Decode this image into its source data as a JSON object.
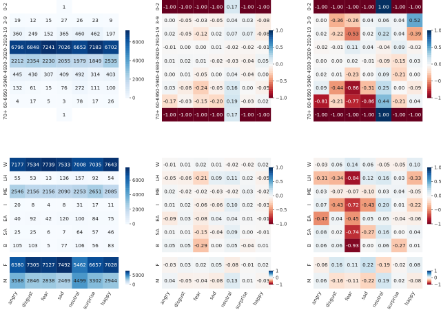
{
  "colors": {
    "counts_low": "#f7fbff",
    "counts_high": "#08306b",
    "div_neg": "#67001f",
    "div_mid": "#f7f7f7",
    "div_pos": "#053061"
  },
  "columns": [
    "angry",
    "disgust",
    "fear",
    "sad",
    "neutral",
    "surprise",
    "happy"
  ],
  "chart_data": [
    {
      "type": "heatmap",
      "id": "age-counts",
      "rows": [
        "0-2",
        "3-9",
        "10-19",
        "20-29",
        "30-39",
        "40-49",
        "50-59",
        "60-69",
        "70+"
      ],
      "values": [
        [
          null,
          null,
          null,
          1,
          null,
          null,
          null
        ],
        [
          19,
          12,
          15,
          27,
          26,
          23,
          9
        ],
        [
          360,
          249,
          152,
          365,
          460,
          462,
          197
        ],
        [
          6796,
          6848,
          7241,
          7026,
          6653,
          7183,
          6702
        ],
        [
          2212,
          2354,
          2230,
          2055,
          1979,
          1849,
          2535
        ],
        [
          445,
          430,
          307,
          409,
          492,
          314,
          403
        ],
        [
          132,
          61,
          15,
          76,
          272,
          111,
          100
        ],
        [
          4,
          17,
          5,
          3,
          78,
          17,
          26
        ],
        [
          null,
          null,
          null,
          1,
          null,
          null,
          null
        ]
      ],
      "vmin": 0,
      "vmax": 7241,
      "colorbar_ticks": [
        0,
        2000,
        4000,
        6000
      ],
      "colorbar_labels": [
        "0",
        "2000",
        "4000",
        "6000"
      ],
      "scale": "counts"
    },
    {
      "type": "heatmap",
      "id": "age-diff-a",
      "rows": [
        "0-2",
        "3-9",
        "10-19",
        "20-29",
        "30-39",
        "40-49",
        "50-59",
        "60-69",
        "70+"
      ],
      "values": [
        [
          -1.0,
          -1.0,
          -1.0,
          -1.0,
          0.17,
          -1.0,
          -1.0
        ],
        [
          0.0,
          -0.05,
          -0.03,
          -0.05,
          0.04,
          0.03,
          -0.08
        ],
        [
          0.02,
          -0.05,
          -0.12,
          0.02,
          0.07,
          0.07,
          -0.08
        ],
        [
          -0.01,
          0.0,
          0.0,
          0.01,
          -0.02,
          -0.02,
          -0.01
        ],
        [
          0.01,
          0.02,
          0.01,
          -0.02,
          -0.03,
          -0.04,
          0.05
        ],
        [
          0.0,
          0.01,
          -0.05,
          0.0,
          0.04,
          -0.04,
          0.0
        ],
        [
          0.03,
          -0.08,
          -0.24,
          -0.05,
          0.16,
          0.0,
          -0.05
        ],
        [
          -0.17,
          -0.03,
          -0.15,
          -0.2,
          0.19,
          -0.03,
          0.02
        ],
        [
          -1.0,
          -1.0,
          -1.0,
          -1.0,
          0.17,
          -1.0,
          -1.0
        ]
      ],
      "vmin": -1,
      "vmax": 1,
      "colorbar_ticks": [
        1,
        0.5,
        0,
        -0.5,
        -1
      ],
      "colorbar_labels": [
        "1.0",
        "0.5",
        "0.0",
        "−0.5",
        "−1.0"
      ],
      "scale": "diverging"
    },
    {
      "type": "heatmap",
      "id": "age-diff-b",
      "rows": [
        "0-2",
        "3-9",
        "10-19",
        "20-29",
        "30-39",
        "40-49",
        "50-59",
        "60-69",
        "70+"
      ],
      "values": [
        [
          -1.0,
          -1.0,
          -1.0,
          -1.0,
          1.0,
          -1.0,
          -1.0
        ],
        [
          0.0,
          -0.36,
          -0.26,
          0.04,
          0.06,
          0.04,
          0.52
        ],
        [
          0.02,
          -0.22,
          -0.53,
          0.02,
          0.22,
          0.04,
          -0.39
        ],
        [
          -0.02,
          -0.01,
          0.11,
          0.04,
          -0.04,
          0.09,
          -0.03
        ],
        [
          0.0,
          0.0,
          0.02,
          -0.01,
          -0.09,
          -0.15,
          0.03
        ],
        [
          0.02,
          0.01,
          -0.23,
          0.0,
          0.09,
          -0.21,
          0.0
        ],
        [
          0.09,
          -0.44,
          -0.86,
          -0.31,
          0.25,
          0.0,
          -0.09
        ],
        [
          -0.81,
          -0.21,
          -0.77,
          -0.86,
          0.44,
          -0.21,
          0.04
        ],
        [
          -1.0,
          -1.0,
          -1.0,
          -1.0,
          1.0,
          -1.0,
          -1.0
        ]
      ],
      "vmin": -1,
      "vmax": 1,
      "colorbar_ticks": [
        1,
        0.5,
        0,
        -0.5,
        -1
      ],
      "colorbar_labels": [
        "1.0",
        "0.5",
        "0.0",
        "−0.5",
        "−1.0"
      ],
      "scale": "diverging"
    },
    {
      "type": "heatmap",
      "id": "race-counts",
      "rows": [
        "W",
        "LH",
        "ME",
        "I",
        "EA",
        "SA",
        "B"
      ],
      "values": [
        [
          7177,
          7534,
          7739,
          7533,
          7008,
          7035,
          7643
        ],
        [
          55,
          53,
          13,
          136,
          157,
          92,
          54
        ],
        [
          2546,
          2156,
          2156,
          2090,
          2253,
          2651,
          2085
        ],
        [
          20,
          8,
          4,
          8,
          31,
          17,
          11
        ],
        [
          40,
          92,
          42,
          120,
          100,
          84,
          75
        ],
        [
          25,
          25,
          6,
          7,
          64,
          57,
          46
        ],
        [
          105,
          103,
          5,
          77,
          106,
          56,
          83
        ]
      ],
      "vmin": 0,
      "vmax": 7739,
      "colorbar_ticks": [
        0,
        2000,
        4000,
        6000
      ],
      "colorbar_labels": [
        "0",
        "2000",
        "4000",
        "6000"
      ],
      "scale": "counts"
    },
    {
      "type": "heatmap",
      "id": "race-diff-a",
      "rows": [
        "W",
        "LH",
        "ME",
        "I",
        "EA",
        "SA",
        "B"
      ],
      "values": [
        [
          -0.01,
          0.01,
          0.02,
          0.01,
          -0.02,
          -0.02,
          0.02
        ],
        [
          -0.05,
          -0.06,
          -0.21,
          0.09,
          0.11,
          0.02,
          -0.05
        ],
        [
          0.02,
          -0.02,
          -0.02,
          -0.03,
          -0.02,
          0.03,
          -0.02
        ],
        [
          0.01,
          0.02,
          -0.06,
          -0.06,
          0.1,
          0.02,
          -0.03
        ],
        [
          -0.09,
          0.03,
          -0.08,
          0.04,
          0.04,
          0.01,
          -0.01
        ],
        [
          0.01,
          0.01,
          -0.15,
          -0.04,
          0.09,
          0.0,
          -0.01
        ],
        [
          0.05,
          0.05,
          -0.29,
          0.0,
          0.05,
          -0.04,
          0.01
        ]
      ],
      "vmin": -1,
      "vmax": 1,
      "colorbar_ticks": [
        1,
        0.5,
        0,
        -0.5,
        -1
      ],
      "colorbar_labels": [
        "1.0",
        "0.5",
        "0.0",
        "−0.5",
        "−1.0"
      ],
      "scale": "diverging"
    },
    {
      "type": "heatmap",
      "id": "race-diff-b",
      "rows": [
        "W",
        "LH",
        "ME",
        "I",
        "EA",
        "SA",
        "B"
      ],
      "values": [
        [
          -0.03,
          0.06,
          0.14,
          0.06,
          -0.05,
          -0.05,
          0.1
        ],
        [
          -0.31,
          -0.34,
          -0.84,
          0.12,
          0.16,
          0.03,
          -0.33
        ],
        [
          0.03,
          -0.07,
          -0.07,
          -0.1,
          0.03,
          0.04,
          -0.05
        ],
        [
          0.07,
          -0.43,
          -0.72,
          -0.43,
          0.2,
          0.01,
          -0.22
        ],
        [
          -0.47,
          0.04,
          -0.45,
          0.05,
          0.05,
          -0.04,
          -0.06
        ],
        [
          0.08,
          0.02,
          -0.74,
          -0.27,
          0.16,
          0.0,
          0.04
        ],
        [
          0.06,
          0.06,
          -0.93,
          0.0,
          0.06,
          -0.27,
          0.01
        ]
      ],
      "vmin": -1,
      "vmax": 1,
      "colorbar_ticks": [
        1,
        0.5,
        0,
        -0.5,
        -1
      ],
      "colorbar_labels": [
        "1.0",
        "0.5",
        "0.0",
        "−0.5",
        "−1.0"
      ],
      "scale": "diverging"
    },
    {
      "type": "heatmap",
      "id": "gender-counts",
      "rows": [
        "F",
        "M"
      ],
      "values": [
        [
          6380,
          7305,
          7127,
          7492,
          5462,
          6657,
          7028
        ],
        [
          3588,
          2846,
          2838,
          2469,
          4499,
          3302,
          2944
        ]
      ],
      "vmin": 0,
      "vmax": 7492,
      "colorbar_ticks": [
        0,
        5000
      ],
      "colorbar_labels": [
        "0",
        "5000"
      ],
      "scale": "counts"
    },
    {
      "type": "heatmap",
      "id": "gender-diff-a",
      "rows": [
        "F",
        "M"
      ],
      "values": [
        [
          -0.03,
          0.03,
          0.02,
          0.05,
          -0.08,
          -0.01,
          0.02
        ],
        [
          0.04,
          -0.05,
          -0.04,
          -0.08,
          0.13,
          0.01,
          -0.03
        ]
      ],
      "vmin": -1,
      "vmax": 1,
      "colorbar_ticks": [
        1,
        0,
        -1
      ],
      "colorbar_labels": [
        "1",
        "0",
        "−1"
      ],
      "scale": "diverging"
    },
    {
      "type": "heatmap",
      "id": "gender-diff-b",
      "rows": [
        "F",
        "M"
      ],
      "values": [
        [
          -0.06,
          0.16,
          0.11,
          0.22,
          -0.19,
          -0.02,
          0.08
        ],
        [
          0.06,
          -0.16,
          -0.11,
          -0.22,
          0.19,
          0.02,
          -0.08
        ]
      ],
      "vmin": -1,
      "vmax": 1,
      "colorbar_ticks": [
        1,
        0,
        -1
      ],
      "colorbar_labels": [
        "1",
        "0",
        "−1"
      ],
      "scale": "diverging"
    }
  ]
}
